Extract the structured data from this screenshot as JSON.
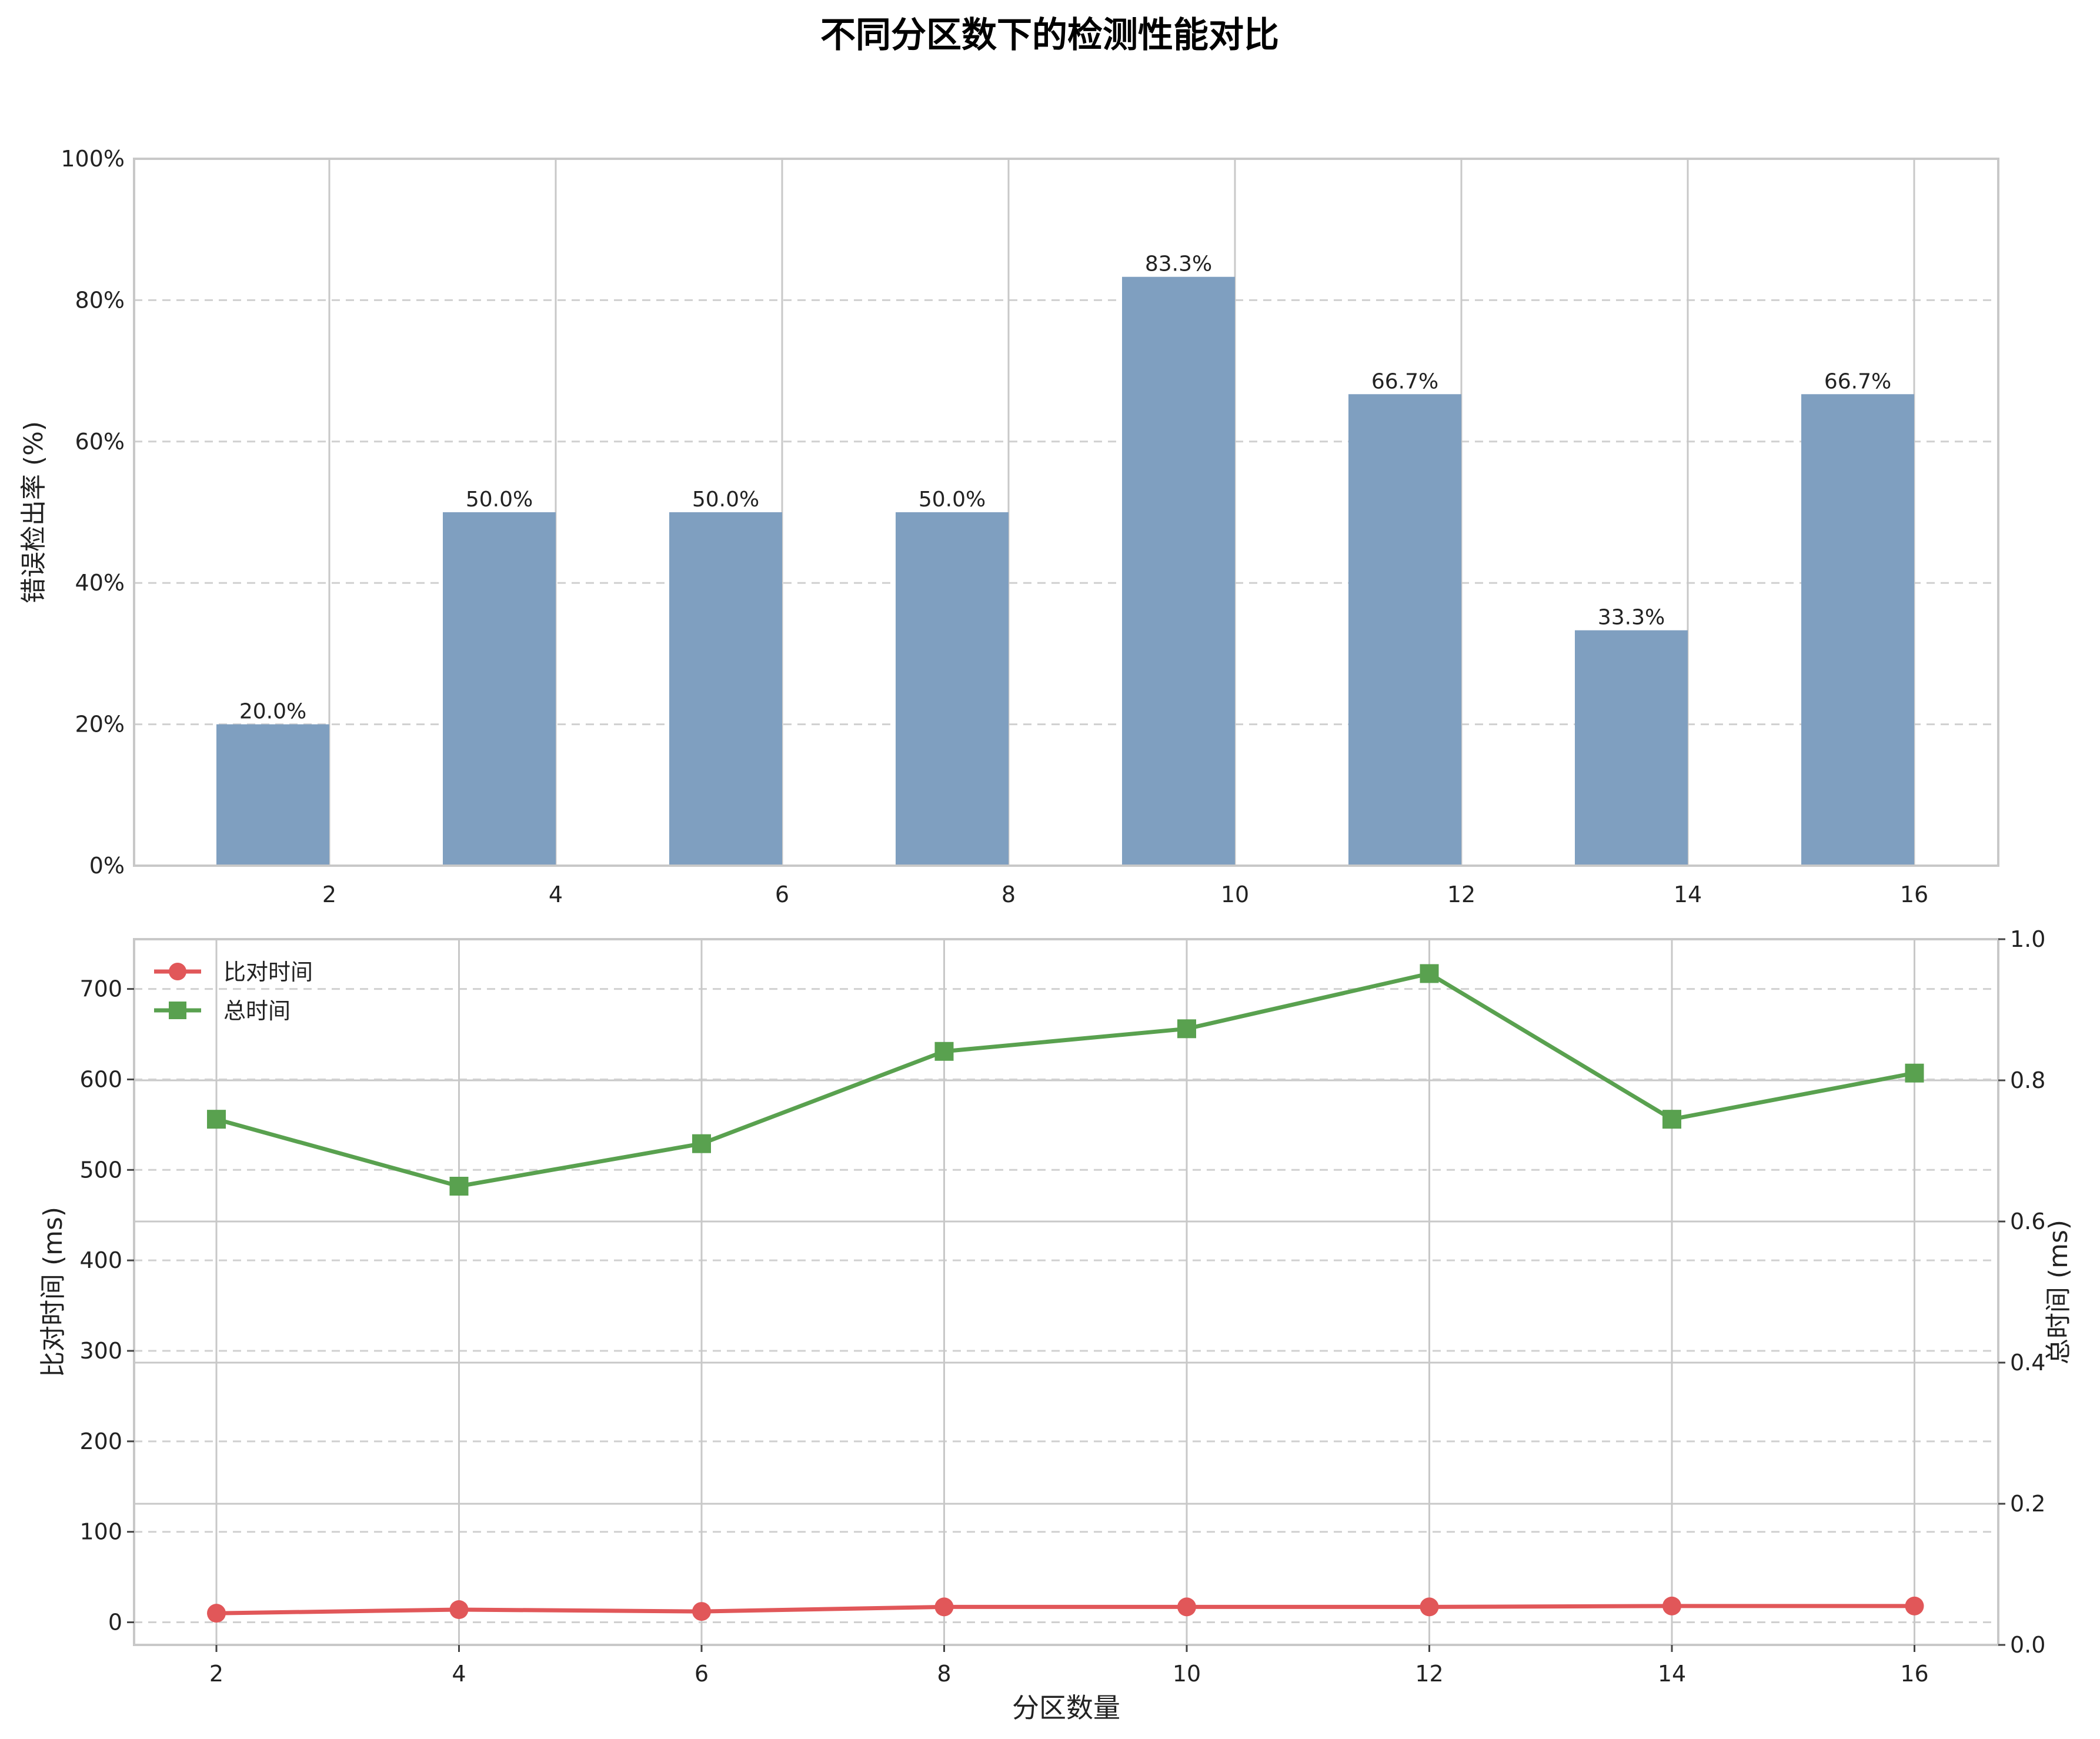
{
  "title": "不同分区数下的检测性能对比",
  "colors": {
    "bar": "#7f9fc0",
    "compare_line": "#e15759",
    "total_line": "#59a14f",
    "axis": "#c8c8c8",
    "grid": "#d0d0d0",
    "text": "#222222"
  },
  "chart_data": [
    {
      "type": "bar",
      "categories": [
        "2",
        "4",
        "6",
        "8",
        "10",
        "12",
        "14",
        "16"
      ],
      "values": [
        20.0,
        50.0,
        50.0,
        50.0,
        83.3,
        66.7,
        33.3,
        66.7
      ],
      "data_labels": [
        "20.0%",
        "50.0%",
        "50.0%",
        "50.0%",
        "83.3%",
        "66.7%",
        "33.3%",
        "66.7%"
      ],
      "ylabel": "错误检出率 (%)",
      "ylim": [
        0,
        100
      ],
      "yticks": [
        "0%",
        "20%",
        "40%",
        "60%",
        "80%",
        "100%"
      ],
      "grid": true
    },
    {
      "type": "line",
      "x": [
        2,
        4,
        6,
        8,
        10,
        12,
        14,
        16
      ],
      "xticks": [
        "2",
        "4",
        "6",
        "8",
        "10",
        "12",
        "14",
        "16"
      ],
      "xlabel": "分区数量",
      "ylabel": "比对时间 (ms)",
      "ylim": [
        -25,
        755
      ],
      "yticks": [
        "0",
        "100",
        "200",
        "300",
        "400",
        "500",
        "600",
        "700"
      ],
      "y2label": "总时间 (ms)",
      "y2lim": [
        0,
        1
      ],
      "y2ticks": [
        "0.0",
        "0.2",
        "0.4",
        "0.6",
        "0.8",
        "1.0"
      ],
      "legend_position": "top-left",
      "grid": true,
      "series": [
        {
          "name": "比对时间",
          "marker": "circle",
          "values": [
            10,
            14,
            12,
            17,
            17,
            17,
            18,
            18
          ]
        },
        {
          "name": "总时间",
          "marker": "square",
          "values": [
            556,
            482,
            529,
            631,
            656,
            717,
            556,
            607
          ]
        }
      ]
    }
  ]
}
